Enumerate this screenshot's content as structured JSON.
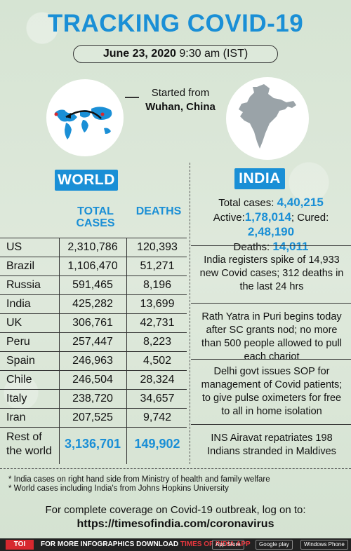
{
  "title": "TRACKING COVID-19",
  "date": {
    "day": "June 23, 2020",
    "time": "9:30 am (IST)"
  },
  "origin": {
    "line1": "Started from",
    "line2": "Wuhan, China"
  },
  "world": {
    "label": "WORLD",
    "headers": {
      "cases": "TOTAL CASES",
      "deaths": "DEATHS"
    },
    "rows": [
      {
        "country": "US",
        "cases": "2,310,786",
        "deaths": "120,393"
      },
      {
        "country": "Brazil",
        "cases": "1,106,470",
        "deaths": "51,271"
      },
      {
        "country": "Russia",
        "cases": "591,465",
        "deaths": "8,196"
      },
      {
        "country": "India",
        "cases": "425,282",
        "deaths": "13,699"
      },
      {
        "country": "UK",
        "cases": "306,761",
        "deaths": "42,731"
      },
      {
        "country": "Peru",
        "cases": "257,447",
        "deaths": "8,223"
      },
      {
        "country": "Spain",
        "cases": "246,963",
        "deaths": "4,502"
      },
      {
        "country": "Chile",
        "cases": "246,504",
        "deaths": "28,324"
      },
      {
        "country": "Italy",
        "cases": "238,720",
        "deaths": "34,657"
      },
      {
        "country": "Iran",
        "cases": "207,525",
        "deaths": "9,742"
      }
    ],
    "rest": {
      "line1": "Rest of",
      "line2": "the world",
      "cases": "3,136,701",
      "deaths": "149,902"
    }
  },
  "india": {
    "label": "INDIA",
    "total_label": "Total cases:",
    "total": "4,40,215",
    "active_label": "Active:",
    "active": "1,78,014",
    "cured_label": "; Cured:",
    "cured": "2,48,190",
    "deaths_label": "Deaths:",
    "deaths": "14,011",
    "news": [
      "India registers spike of 14,933 new Covid cases; 312 deaths in the last 24 hrs",
      "Rath Yatra in Puri begins today after SC grants nod; no more than 500 people allowed to pull each chariot",
      "Delhi govt issues SOP for management of Covid patients; to give pulse oximeters for free to all in home isolation",
      "INS Airavat repatriates 198 Indians stranded in Maldives"
    ]
  },
  "notes": [
    "* India cases on right hand side from Ministry of health and family welfare",
    "* World cases including India's from Johns Hopkins University"
  ],
  "coverage": {
    "text": "For complete coverage on Covid-19 outbreak, log on to:",
    "url": "https://timesofindia.com/coronavirus"
  },
  "footer": {
    "logo": "TOI",
    "promo": "FOR MORE  INFOGRAPHICS DOWNLOAD",
    "promo_app": "TIMES OF INDIA  APP",
    "stores": [
      "App Store",
      "Google play",
      "Windows Phone"
    ]
  },
  "colors": {
    "accent": "#1a8fd6",
    "background": "#d9e6d6"
  }
}
